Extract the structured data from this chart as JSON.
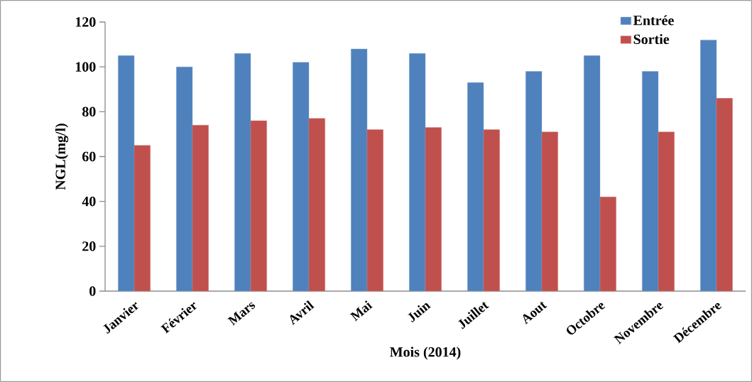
{
  "chart_data": {
    "type": "bar",
    "xlabel": "Mois (2014)",
    "ylabel": "NGL(mg/l)",
    "categories": [
      "Janvier",
      "Février",
      "Mars",
      "Avril",
      "Mai",
      "Juin",
      "Juillet",
      "Aout",
      "Octobre",
      "Novembre",
      "Décembre"
    ],
    "series": [
      {
        "name": "Entrée",
        "color": "#4f81bd",
        "values": [
          105,
          100,
          106,
          102,
          108,
          106,
          93,
          98,
          105,
          98,
          112
        ]
      },
      {
        "name": "Sortie",
        "color": "#c0504d",
        "values": [
          65,
          74,
          76,
          77,
          72,
          73,
          72,
          71,
          42,
          71,
          86
        ]
      }
    ],
    "ylim": [
      0,
      120
    ],
    "yticks": [
      0,
      20,
      40,
      60,
      80,
      100,
      120
    ],
    "grid": false,
    "legend": "top right"
  }
}
